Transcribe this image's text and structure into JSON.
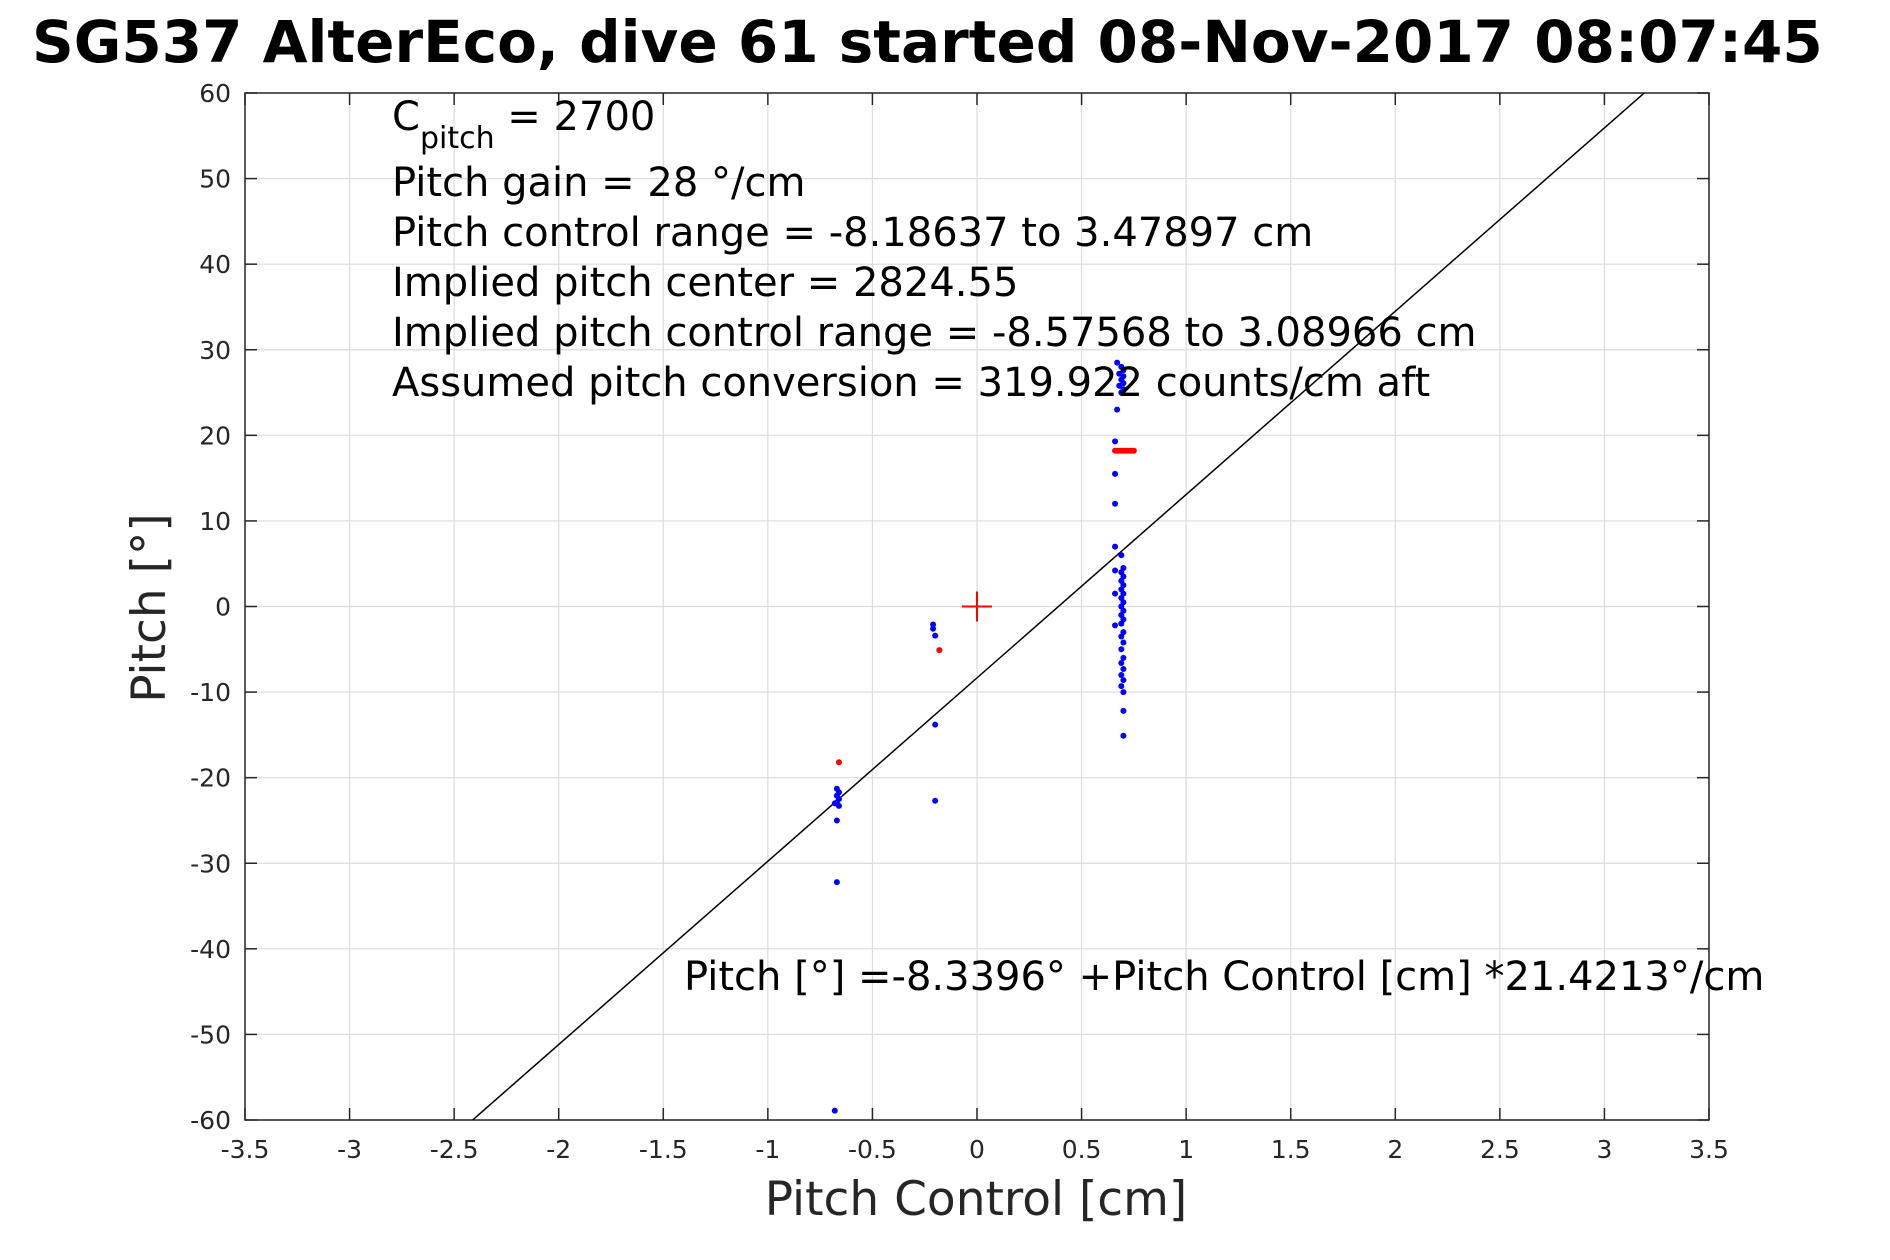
{
  "chart_data": {
    "type": "scatter",
    "title": "SG537 AlterEco, dive 61 started 08-Nov-2017 08:07:45",
    "xlabel": "Pitch Control [cm]",
    "ylabel": "Pitch [°]",
    "xlim": [
      -3.5,
      3.5
    ],
    "ylim": [
      -60,
      60
    ],
    "xticks": [
      -3.5,
      -3,
      -2.5,
      -2,
      -1.5,
      -1,
      -0.5,
      0,
      0.5,
      1,
      1.5,
      2,
      2.5,
      3,
      3.5
    ],
    "xtick_labels": [
      "-3.5",
      "-3",
      "-2.5",
      "-2",
      "-1.5",
      "-1",
      "-0.5",
      "0",
      "0.5",
      "1",
      "1.5",
      "2",
      "2.5",
      "3",
      "3.5"
    ],
    "yticks": [
      60,
      50,
      40,
      30,
      20,
      10,
      0,
      -10,
      -20,
      -30,
      -40,
      -50,
      -60
    ],
    "ytick_labels": [
      "60",
      "50",
      "40",
      "30",
      "20",
      "10",
      "0",
      "-10",
      "-20",
      "-30",
      "-40",
      "-50",
      "-60"
    ],
    "grid": true,
    "colors": {
      "data": "#0000ff",
      "flagged": "#ff0000",
      "fit": "#000000",
      "center": "#ff0000"
    },
    "annotations": {
      "cpitch_base": "C",
      "cpitch_sub": "pitch",
      "cpitch_value": " = 2700",
      "gain": "Pitch gain = 28 °/cm",
      "range": "Pitch control range = -8.18637 to 3.47897 cm",
      "center": "Implied pitch center = 2824.55",
      "implied_range": "Implied pitch control range = -8.57568 to 3.08966 cm",
      "conversion": "Assumed pitch conversion = 319.922 counts/cm aft",
      "fit_equation": "Pitch [°] =-8.3396° +Pitch Control [cm] *21.4213°/cm"
    },
    "fit_line": {
      "intercept": -8.3396,
      "slope": 21.4213
    },
    "center_marker": {
      "x": 0,
      "y": 0
    },
    "series": [
      {
        "color": "blue",
        "points": [
          [
            0.67,
            28.5
          ],
          [
            0.69,
            28.0
          ],
          [
            0.7,
            27.6
          ],
          [
            0.68,
            27.2
          ],
          [
            0.7,
            26.9
          ],
          [
            0.69,
            26.5
          ],
          [
            0.7,
            26.1
          ],
          [
            0.68,
            25.8
          ],
          [
            0.7,
            25.4
          ],
          [
            0.69,
            25.0
          ],
          [
            0.67,
            23.0
          ],
          [
            0.66,
            19.3
          ],
          [
            0.66,
            15.5
          ],
          [
            0.66,
            12.0
          ],
          [
            0.66,
            7.0
          ],
          [
            0.66,
            4.2
          ],
          [
            0.66,
            1.5
          ],
          [
            0.66,
            -2.2
          ],
          [
            0.69,
            6.0
          ],
          [
            0.7,
            4.5
          ],
          [
            0.69,
            4.0
          ],
          [
            0.7,
            3.5
          ],
          [
            0.69,
            3.0
          ],
          [
            0.7,
            2.5
          ],
          [
            0.69,
            2.0
          ],
          [
            0.7,
            1.5
          ],
          [
            0.69,
            1.0
          ],
          [
            0.7,
            0.5
          ],
          [
            0.69,
            0.0
          ],
          [
            0.7,
            -0.5
          ],
          [
            0.69,
            -1.0
          ],
          [
            0.7,
            -1.5
          ],
          [
            0.69,
            -2.0
          ],
          [
            0.7,
            -3.0
          ],
          [
            0.69,
            -3.5
          ],
          [
            0.7,
            -4.2
          ],
          [
            0.69,
            -5.0
          ],
          [
            0.7,
            -6.0
          ],
          [
            0.69,
            -6.6
          ],
          [
            0.7,
            -7.3
          ],
          [
            0.69,
            -8.0
          ],
          [
            0.7,
            -8.6
          ],
          [
            0.69,
            -9.3
          ],
          [
            0.7,
            -10.0
          ],
          [
            0.7,
            -12.2
          ],
          [
            0.7,
            -15.1
          ],
          [
            -0.21,
            -2.1
          ],
          [
            -0.21,
            -2.6
          ],
          [
            -0.2,
            -3.4
          ],
          [
            -0.2,
            -13.8
          ],
          [
            -0.2,
            -22.7
          ],
          [
            -0.67,
            -21.3
          ],
          [
            -0.66,
            -21.7
          ],
          [
            -0.67,
            -22.1
          ],
          [
            -0.66,
            -22.5
          ],
          [
            -0.67,
            -22.9
          ],
          [
            -0.66,
            -23.3
          ],
          [
            -0.68,
            -23.0
          ],
          [
            -0.67,
            -25.0
          ],
          [
            -0.67,
            -32.2
          ],
          [
            -0.68,
            -58.9
          ]
        ]
      },
      {
        "color": "red",
        "points": [
          [
            0.66,
            18.2
          ],
          [
            0.67,
            18.2
          ],
          [
            0.68,
            18.2
          ],
          [
            0.69,
            18.2
          ],
          [
            0.7,
            18.2
          ],
          [
            0.71,
            18.2
          ],
          [
            0.72,
            18.2
          ],
          [
            0.73,
            18.2
          ],
          [
            0.74,
            18.2
          ],
          [
            0.75,
            18.2
          ],
          [
            -0.18,
            -5.1
          ],
          [
            -0.66,
            -18.2
          ]
        ]
      }
    ]
  }
}
